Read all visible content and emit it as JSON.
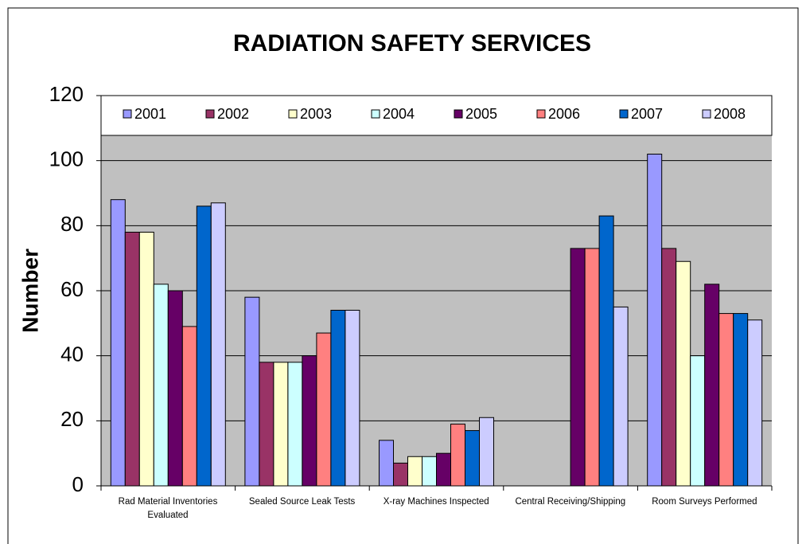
{
  "chart_data": {
    "type": "bar",
    "title": "RADIATION SAFETY SERVICES",
    "y_label": "Number",
    "categories": [
      "Rad Material Inventories Evaluated",
      "Sealed Source Leak Tests",
      "X-ray Machines Inspected",
      "Central Receiving/Shipping",
      "Room Surveys Performed"
    ],
    "series": [
      {
        "name": "2001",
        "color": "#9999ff",
        "values": [
          88,
          58,
          14,
          null,
          102
        ]
      },
      {
        "name": "2002",
        "color": "#993366",
        "values": [
          78,
          38,
          7,
          null,
          73
        ]
      },
      {
        "name": "2003",
        "color": "#ffffcc",
        "values": [
          78,
          38,
          9,
          null,
          69
        ]
      },
      {
        "name": "2004",
        "color": "#ccffff",
        "values": [
          62,
          38,
          9,
          null,
          40
        ]
      },
      {
        "name": "2005",
        "color": "#660066",
        "values": [
          60,
          40,
          10,
          73,
          62
        ]
      },
      {
        "name": "2006",
        "color": "#ff8080",
        "values": [
          49,
          47,
          19,
          73,
          53
        ]
      },
      {
        "name": "2007",
        "color": "#0066cc",
        "values": [
          86,
          54,
          17,
          83,
          53
        ]
      },
      {
        "name": "2008",
        "color": "#ccccff",
        "values": [
          87,
          54,
          21,
          55,
          51
        ]
      }
    ],
    "ylim": [
      0,
      120
    ],
    "yticks": [
      0,
      20,
      40,
      60,
      80,
      100,
      120
    ],
    "grid": true,
    "legend": "top"
  }
}
